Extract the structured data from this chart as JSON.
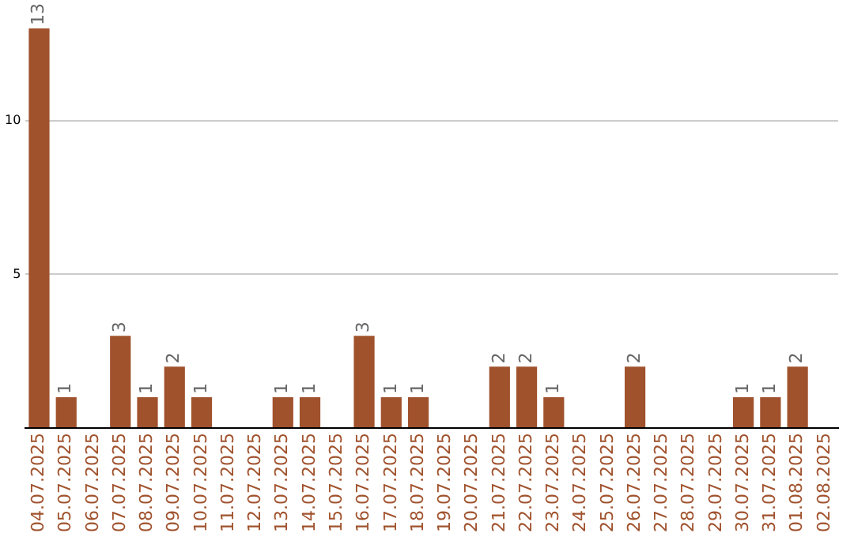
{
  "chart_data": {
    "type": "bar",
    "categories": [
      "04.07.2025",
      "05.07.2025",
      "06.07.2025",
      "07.07.2025",
      "08.07.2025",
      "09.07.2025",
      "10.07.2025",
      "11.07.2025",
      "12.07.2025",
      "13.07.2025",
      "14.07.2025",
      "15.07.2025",
      "16.07.2025",
      "17.07.2025",
      "18.07.2025",
      "19.07.2025",
      "20.07.2025",
      "21.07.2025",
      "22.07.2025",
      "23.07.2025",
      "24.07.2025",
      "25.07.2025",
      "26.07.2025",
      "27.07.2025",
      "28.07.2025",
      "29.07.2025",
      "30.07.2025",
      "31.07.2025",
      "01.08.2025",
      "02.08.2025"
    ],
    "values": [
      13,
      1,
      0,
      3,
      1,
      2,
      1,
      0,
      0,
      1,
      1,
      0,
      3,
      1,
      1,
      0,
      0,
      2,
      2,
      1,
      0,
      0,
      2,
      0,
      0,
      0,
      1,
      1,
      2,
      0
    ],
    "value_labels": [
      "13",
      "1",
      null,
      "3",
      "1",
      "2",
      "1",
      null,
      null,
      "1",
      "1",
      null,
      "3",
      "1",
      "1",
      null,
      null,
      "2",
      "2",
      "1",
      null,
      null,
      "2",
      null,
      null,
      null,
      "1",
      "1",
      "2",
      null
    ],
    "color": "#a0522d",
    "ylim": [
      0,
      13
    ],
    "yticks": [
      {
        "value": 0,
        "label": null
      },
      5,
      10
    ],
    "grid": "y",
    "legend": false
  }
}
